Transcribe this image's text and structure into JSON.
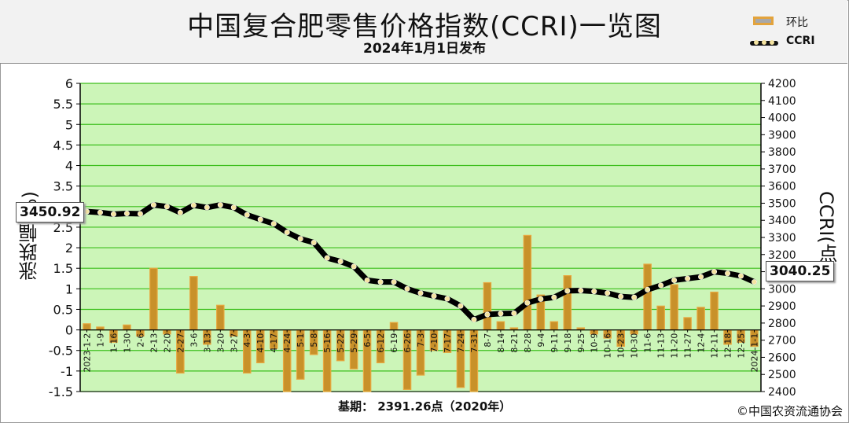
{
  "header": {
    "title": "中国复合肥零售价格指数(CCRI)一览图",
    "subtitle": "2024年1月1日发布"
  },
  "legend": {
    "bar_label": "环比",
    "line_label": "CCRI"
  },
  "axes": {
    "left_label": "涨跌幅(%)",
    "right_label": "CCRI(点)"
  },
  "callouts": {
    "start_value": "3450.92",
    "end_value": "3040.25"
  },
  "footer": {
    "base": "基期：  2391.26点（2020年）",
    "copyright": "©中国农资流通协会"
  },
  "colors": {
    "plot_bg": "#ccf5b8",
    "grid": "#3cbf1c",
    "bar_fill": "#c8912a",
    "bar_edge": "#e8a840",
    "line": "#000000",
    "marker": "#f4e3a0"
  },
  "chart_data": {
    "type": "bar+line",
    "categories": [
      "2023-1-2",
      "1-9",
      "1-16",
      "1-30",
      "2-6",
      "2-13",
      "2-20",
      "2-27",
      "3-6",
      "3-13",
      "3-20",
      "3-27",
      "4-3",
      "4-10",
      "4-17",
      "4-24",
      "5-1",
      "5-8",
      "5-16",
      "5-22",
      "5-29",
      "6-5",
      "6-12",
      "6-19",
      "6-26",
      "7-3",
      "7-10",
      "7-17",
      "7-24",
      "7-31",
      "8-7",
      "8-14",
      "8-21",
      "8-28",
      "9-4",
      "9-11",
      "9-18",
      "9-25",
      "10-9",
      "10-16",
      "10-23",
      "10-30",
      "11-6",
      "11-13",
      "11-20",
      "11-27",
      "12-4",
      "12-11",
      "12-18",
      "12-25",
      "2024-1-1"
    ],
    "yleft": {
      "min": -1.5,
      "max": 6,
      "step": 0.5,
      "ticks": [
        "-1.5",
        "-1",
        "-0.5",
        "0",
        "0.5",
        "1",
        "1.5",
        "2",
        "2.5",
        "3",
        "3.5",
        "4",
        "4.5",
        "5",
        "5.5",
        "6"
      ]
    },
    "yright": {
      "min": 2400,
      "max": 4200,
      "step": 100,
      "ticks": [
        "2400",
        "2500",
        "2600",
        "2700",
        "2800",
        "2900",
        "3000",
        "3100",
        "3200",
        "3300",
        "3400",
        "3500",
        "3600",
        "3700",
        "3800",
        "3900",
        "4000",
        "4100",
        "4200"
      ]
    },
    "series": [
      {
        "name": "环比",
        "axis": "left",
        "kind": "bar",
        "values": [
          0.15,
          0.07,
          -0.3,
          0.12,
          -0.15,
          1.5,
          -0.1,
          -1.05,
          1.3,
          -0.35,
          0.6,
          -0.15,
          -1.05,
          -0.8,
          -0.45,
          -1.5,
          -1.2,
          -0.6,
          -1.5,
          -0.75,
          -0.95,
          -1.5,
          -0.8,
          0.18,
          -1.45,
          -1.1,
          -0.5,
          -0.55,
          -1.4,
          -1.5,
          1.15,
          0.2,
          0.05,
          2.3,
          0.85,
          0.2,
          1.32,
          0.05,
          -0.1,
          -0.2,
          -0.4,
          -0.1,
          1.6,
          0.58,
          1.1,
          0.3,
          0.55,
          0.92,
          -0.35,
          -0.3,
          -0.4
        ]
      },
      {
        "name": "CCRI",
        "axis": "right",
        "kind": "line",
        "values": [
          3450.92,
          3446,
          3436,
          3440,
          3438,
          3490,
          3480,
          3445,
          3488,
          3475,
          3490,
          3475,
          3432,
          3405,
          3380,
          3330,
          3292,
          3270,
          3180,
          3160,
          3130,
          3050,
          3040,
          3040,
          3000,
          2975,
          2958,
          2942,
          2900,
          2820,
          2850,
          2855,
          2857,
          2918,
          2940,
          2950,
          2988,
          2990,
          2985,
          2975,
          2955,
          2950,
          2995,
          3020,
          3050,
          3060,
          3070,
          3100,
          3090,
          3075,
          3040.25
        ]
      }
    ]
  }
}
